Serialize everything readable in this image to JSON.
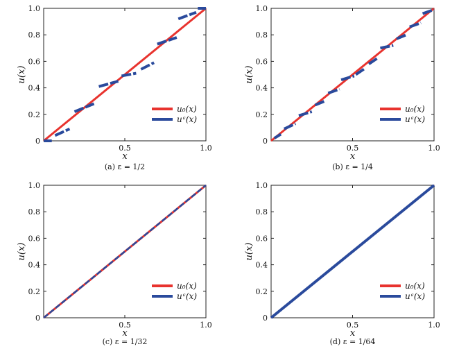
{
  "chart_data": [
    {
      "type": "line",
      "caption": "(a) ε = 1/2",
      "xlabel": "x",
      "ylabel": "u(x)",
      "xlim": [
        0,
        1
      ],
      "ylim": [
        0,
        1
      ],
      "xticks": [
        "0.5",
        "1.0"
      ],
      "yticks": [
        "0",
        "0.2",
        "0.4",
        "0.6",
        "0.8",
        "1.0"
      ],
      "legend_position": "bottom-right",
      "series": [
        {
          "name": "u₀(x)",
          "color": "#e8332e",
          "x": [
            0,
            1
          ],
          "y": [
            0,
            1
          ]
        },
        {
          "name": "uᵋ(x)",
          "color": "#2a4a9c",
          "dashed": true,
          "segments": [
            [
              [
                0.0,
                0.0
              ],
              [
                0.05,
                0.0
              ]
            ],
            [
              [
                0.07,
                0.04
              ],
              [
                0.16,
                0.09
              ]
            ],
            [
              [
                0.19,
                0.22
              ],
              [
                0.31,
                0.28
              ]
            ],
            [
              [
                0.34,
                0.41
              ],
              [
                0.46,
                0.45
              ]
            ],
            [
              [
                0.48,
                0.49
              ],
              [
                0.57,
                0.51
              ]
            ],
            [
              [
                0.6,
                0.54
              ],
              [
                0.68,
                0.59
              ]
            ],
            [
              [
                0.7,
                0.73
              ],
              [
                0.82,
                0.78
              ]
            ],
            [
              [
                0.83,
                0.92
              ],
              [
                0.94,
                0.97
              ]
            ],
            [
              [
                0.95,
                1.0
              ],
              [
                1.0,
                1.0
              ]
            ]
          ]
        }
      ]
    },
    {
      "type": "line",
      "caption": "(b) ε = 1/4",
      "xlabel": "x",
      "ylabel": "u(x)",
      "xlim": [
        0,
        1
      ],
      "ylim": [
        0,
        1
      ],
      "xticks": [
        "0.5",
        "1.0"
      ],
      "yticks": [
        "0",
        "0.2",
        "0.4",
        "0.6",
        "0.8",
        "1.0"
      ],
      "legend_position": "bottom-right",
      "series": [
        {
          "name": "u₀(x)",
          "color": "#e8332e",
          "x": [
            0,
            1
          ],
          "y": [
            0,
            1
          ]
        },
        {
          "name": "uᵋ(x)",
          "color": "#2a4a9c",
          "dashed": true,
          "segments": [
            [
              [
                0.02,
                0.02
              ],
              [
                0.06,
                0.05
              ]
            ],
            [
              [
                0.08,
                0.09
              ],
              [
                0.15,
                0.13
              ]
            ],
            [
              [
                0.17,
                0.19
              ],
              [
                0.25,
                0.22
              ]
            ],
            [
              [
                0.27,
                0.27
              ],
              [
                0.33,
                0.3
              ]
            ],
            [
              [
                0.35,
                0.36
              ],
              [
                0.42,
                0.39
              ]
            ],
            [
              [
                0.43,
                0.46
              ],
              [
                0.51,
                0.49
              ]
            ],
            [
              [
                0.52,
                0.5
              ],
              [
                0.58,
                0.55
              ]
            ],
            [
              [
                0.6,
                0.58
              ],
              [
                0.66,
                0.63
              ]
            ],
            [
              [
                0.67,
                0.7
              ],
              [
                0.75,
                0.72
              ]
            ],
            [
              [
                0.77,
                0.77
              ],
              [
                0.83,
                0.8
              ]
            ],
            [
              [
                0.85,
                0.86
              ],
              [
                0.92,
                0.89
              ]
            ],
            [
              [
                0.93,
                0.96
              ],
              [
                1.0,
                0.99
              ]
            ]
          ]
        }
      ]
    },
    {
      "type": "line",
      "caption": "(c) ε = 1/32",
      "xlabel": "x",
      "ylabel": "u(x)",
      "xlim": [
        0,
        1
      ],
      "ylim": [
        0,
        1
      ],
      "xticks": [
        "0.5",
        "1.0"
      ],
      "yticks": [
        "0",
        "0.2",
        "0.4",
        "0.6",
        "0.8",
        "1.0"
      ],
      "legend_position": "bottom-right",
      "series": [
        {
          "name": "u₀(x)",
          "color": "#e8332e",
          "x": [
            0,
            1
          ],
          "y": [
            0,
            1
          ]
        },
        {
          "name": "uᵋ(x)",
          "color": "#2a4a9c",
          "dashed": true,
          "x": [
            0,
            1
          ],
          "y": [
            0,
            1
          ]
        }
      ]
    },
    {
      "type": "line",
      "caption": "(d) ε = 1/64",
      "xlabel": "x",
      "ylabel": "u(x)",
      "xlim": [
        0,
        1
      ],
      "ylim": [
        0,
        1
      ],
      "xticks": [
        "0.5",
        "1.0"
      ],
      "yticks": [
        "0",
        "0.2",
        "0.4",
        "0.6",
        "0.8",
        "1.0"
      ],
      "legend_position": "bottom-right",
      "series": [
        {
          "name": "u₀(x)",
          "color": "#e8332e",
          "x": [
            0,
            1
          ],
          "y": [
            0,
            1
          ]
        },
        {
          "name": "uᵋ(x)",
          "color": "#2a4a9c",
          "dashed": false,
          "x": [
            0,
            1
          ],
          "y": [
            0,
            1
          ]
        }
      ]
    }
  ]
}
